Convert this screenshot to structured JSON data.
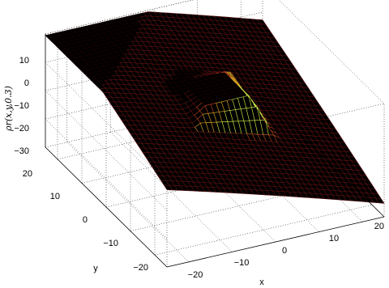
{
  "chart_data": {
    "type": "surface",
    "title": "",
    "xlabel": "x",
    "ylabel": "y",
    "zlabel": "ρr(x,y,0.3)",
    "xlim": [
      -25,
      25
    ],
    "ylim": [
      -25,
      25
    ],
    "zlim": [
      -30,
      10
    ],
    "x_ticks": [
      "−20",
      "−10",
      "0",
      "10",
      "20"
    ],
    "y_ticks": [
      "20",
      "10",
      "0",
      "−10",
      "−20"
    ],
    "z_ticks": [
      "10",
      "0",
      "−10",
      "−20",
      "−30"
    ],
    "grid": true,
    "colormap": [
      "#1a0000",
      "#5a1010",
      "#b84020",
      "#d4a020",
      "#c8e040"
    ],
    "features": [
      {
        "shape": "plateau",
        "center": [
          0,
          0
        ],
        "z": 3
      },
      {
        "shape": "corner_minimum",
        "location": "x=25,y=-25",
        "z": -25
      },
      {
        "shape": "corner_rise",
        "location": "x=-25,y=25",
        "z": 8
      }
    ]
  }
}
